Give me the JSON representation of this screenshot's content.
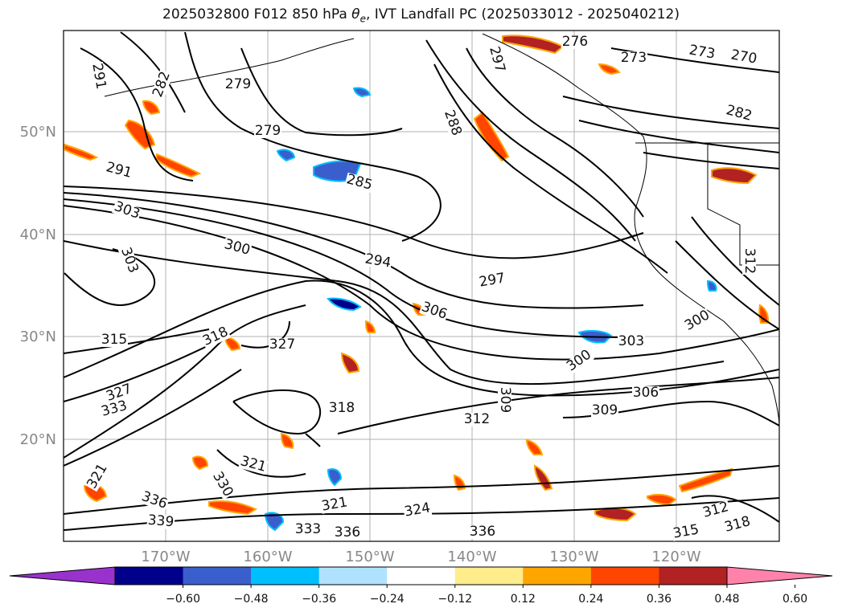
{
  "title": {
    "prefix": "2025032800 F012 850 hPa ",
    "symbol": "θe",
    "suffix": ", IVT Landfall PC (2025033012 - 2025040212)"
  },
  "map": {
    "lat_labels": [
      "50°N",
      "40°N",
      "30°N",
      "20°N"
    ],
    "lon_labels": [
      "170°W",
      "160°W",
      "150°W",
      "140°W",
      "130°W",
      "120°W"
    ],
    "contour_labels": [
      "291",
      "282",
      "279",
      "279",
      "291",
      "285",
      "288",
      "297",
      "276",
      "273",
      "273",
      "270",
      "282",
      "303",
      "300",
      "303",
      "294",
      "297",
      "306",
      "300",
      "318",
      "315",
      "327",
      "303",
      "300",
      "306",
      "327",
      "333",
      "309",
      "312",
      "309",
      "318",
      "321",
      "321",
      "330",
      "336",
      "339",
      "321",
      "324",
      "333",
      "336",
      "336",
      "312",
      "315",
      "318",
      "312"
    ]
  },
  "colorbar": {
    "colors": [
      "#9932cc",
      "#00008b",
      "#3a5fcd",
      "#00bfff",
      "#b0e2ff",
      "#ffffff",
      "#ffec8b",
      "#ffa500",
      "#ff4500",
      "#b22222",
      "#ff82ab"
    ],
    "tick_labels": [
      "−0.60",
      "−0.48",
      "−0.36",
      "−0.24",
      "−0.12",
      "0.12",
      "0.24",
      "0.36",
      "0.48",
      "0.60"
    ]
  }
}
